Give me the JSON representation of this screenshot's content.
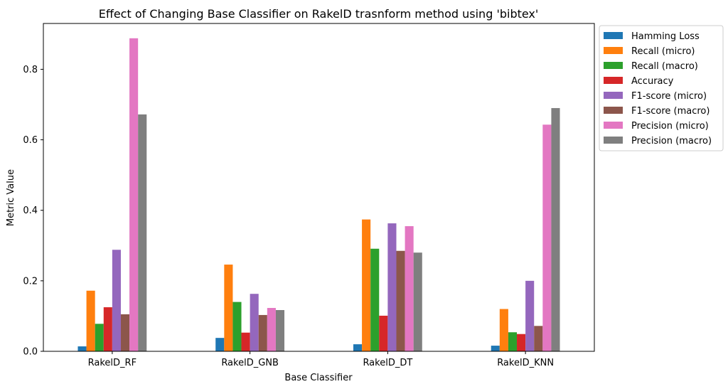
{
  "chart_data": {
    "type": "bar",
    "title": "Effect of Changing Base Classifier on RakelD trasnform method using 'bibtex'",
    "xlabel": "Base Classifier",
    "ylabel": "Metric Value",
    "ylim": [
      0,
      0.9
    ],
    "yticks": [
      "0.0",
      "0.2",
      "0.4",
      "0.6",
      "0.8"
    ],
    "ytick_values": [
      0,
      0.2,
      0.4,
      0.6,
      0.8
    ],
    "grid": false,
    "legend_position": "outside-top-right",
    "categories": [
      "RakelD_RF",
      "RakelD_GNB",
      "RakelD_DT",
      "RakelD_KNN"
    ],
    "series": [
      {
        "name": "Hamming Loss",
        "color": "#1f77b4",
        "values": [
          0.014,
          0.038,
          0.02,
          0.016
        ]
      },
      {
        "name": "Recall (micro)",
        "color": "#ff7f0e",
        "values": [
          0.172,
          0.246,
          0.374,
          0.12
        ]
      },
      {
        "name": "Recall (macro)",
        "color": "#2ca02c",
        "values": [
          0.078,
          0.14,
          0.291,
          0.054
        ]
      },
      {
        "name": "Accuracy",
        "color": "#d62728",
        "values": [
          0.125,
          0.053,
          0.101,
          0.049
        ]
      },
      {
        "name": "F1-score (micro)",
        "color": "#9467bd",
        "values": [
          0.288,
          0.163,
          0.363,
          0.2
        ]
      },
      {
        "name": "F1-score (macro)",
        "color": "#8c564b",
        "values": [
          0.105,
          0.103,
          0.285,
          0.072
        ]
      },
      {
        "name": "Precision (micro)",
        "color": "#e377c2",
        "values": [
          0.888,
          0.123,
          0.355,
          0.643
        ]
      },
      {
        "name": "Precision (macro)",
        "color": "#7f7f7f",
        "values": [
          0.672,
          0.117,
          0.28,
          0.69
        ]
      }
    ]
  }
}
